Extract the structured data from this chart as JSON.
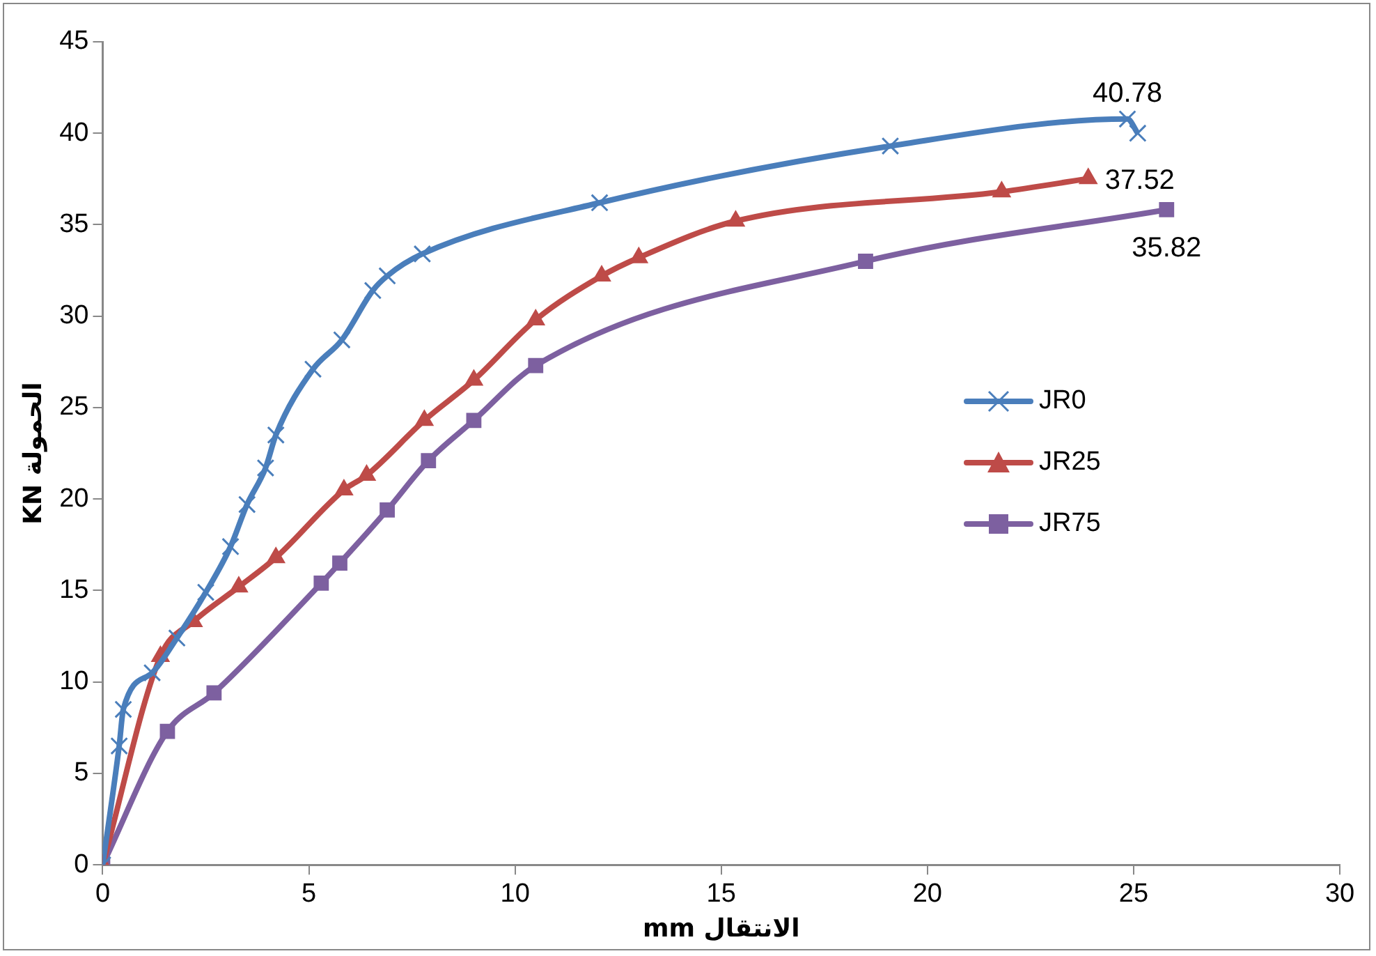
{
  "chart_data": {
    "type": "line",
    "xlabel": "mm الانتقال",
    "ylabel": "KN الحمولة",
    "xlim": [
      0,
      30
    ],
    "xticks": [
      0,
      5,
      10,
      15,
      20,
      25,
      30
    ],
    "ylim": [
      0,
      45
    ],
    "yticks": [
      0,
      5,
      10,
      15,
      20,
      25,
      30,
      35,
      40,
      45
    ],
    "grid": false,
    "legend": "right",
    "series": [
      {
        "name": "JR0",
        "color": "#4a7ebb",
        "marker": "cross",
        "x": [
          0,
          0.4,
          0.5,
          1.2,
          1.8,
          2.5,
          3.1,
          3.5,
          3.95,
          4.2,
          5.1,
          5.8,
          6.55,
          6.9,
          7.75,
          12.05,
          19.1,
          24.85,
          25.1
        ],
        "values": [
          0,
          6.5,
          8.5,
          10.5,
          12.4,
          14.9,
          17.4,
          19.7,
          21.7,
          23.5,
          27.1,
          28.7,
          31.4,
          32.2,
          33.4,
          36.2,
          39.3,
          40.78,
          40.0
        ],
        "value_labels": [
          null,
          null,
          null,
          null,
          null,
          null,
          null,
          null,
          null,
          null,
          null,
          null,
          null,
          null,
          null,
          null,
          null,
          "40.78",
          null
        ]
      },
      {
        "name": "JR25",
        "color": "#be4b48",
        "marker": "triangle",
        "x": [
          0,
          1.4,
          2.2,
          3.3,
          4.2,
          5.85,
          6.4,
          7.8,
          9.0,
          10.5,
          12.1,
          13.0,
          15.35,
          21.8,
          23.9
        ],
        "values": [
          0,
          11.4,
          13.3,
          15.2,
          16.8,
          20.5,
          21.3,
          24.3,
          26.5,
          29.8,
          32.2,
          33.2,
          35.2,
          36.8,
          37.52
        ],
        "value_labels": [
          null,
          null,
          null,
          null,
          null,
          null,
          null,
          null,
          null,
          null,
          null,
          null,
          null,
          null,
          "37.52"
        ]
      },
      {
        "name": "JR75",
        "color": "#7d60a0",
        "marker": "square",
        "x": [
          0,
          1.57,
          2.7,
          5.3,
          5.75,
          6.9,
          7.9,
          9.0,
          10.5,
          18.5,
          25.8
        ],
        "values": [
          0,
          7.3,
          9.4,
          15.4,
          16.5,
          19.4,
          22.1,
          24.3,
          27.3,
          33.0,
          35.82
        ],
        "value_labels": [
          null,
          null,
          null,
          null,
          null,
          null,
          null,
          null,
          null,
          null,
          "35.82"
        ]
      }
    ]
  }
}
